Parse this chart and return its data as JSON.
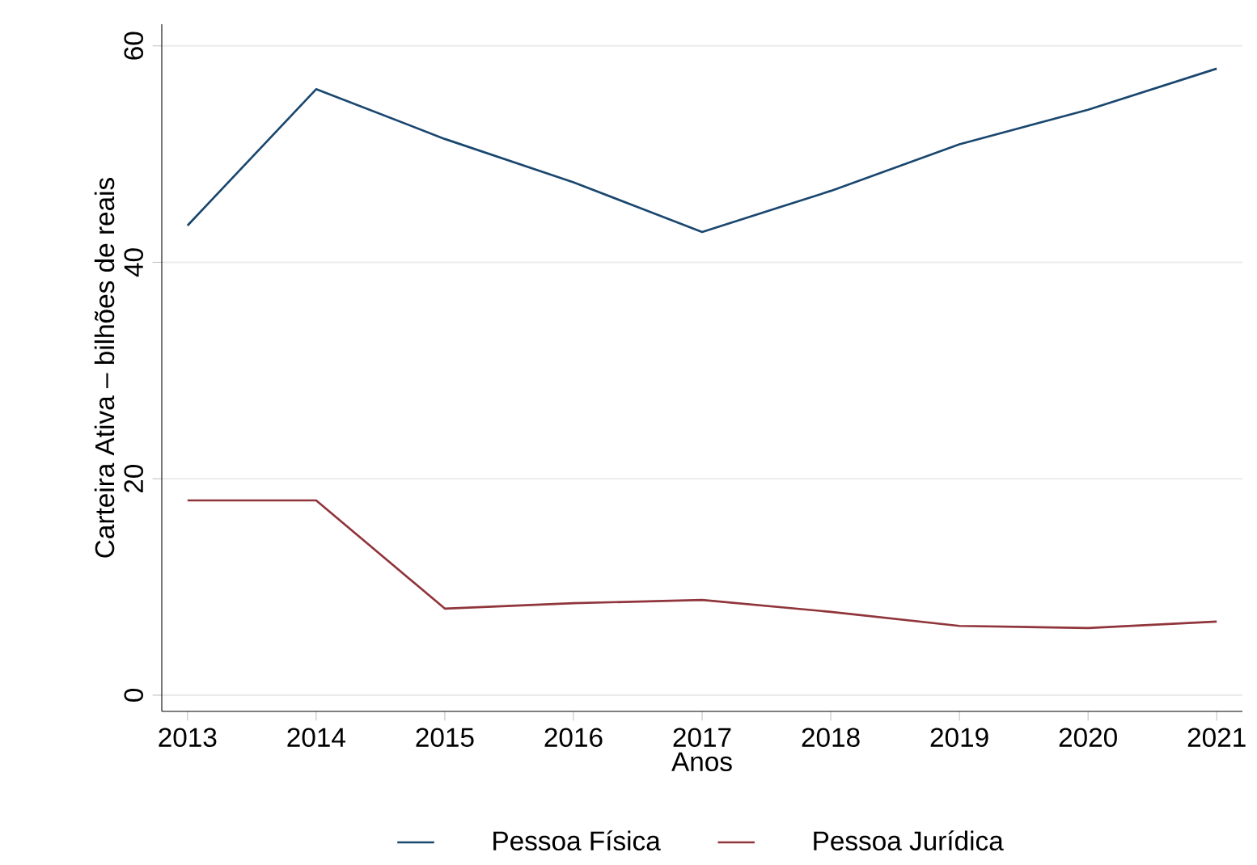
{
  "chart_data": {
    "type": "line",
    "xlabel": "Anos",
    "ylabel": "Carteira Ativa – bilhões de reais",
    "x": [
      2013,
      2014,
      2015,
      2016,
      2017,
      2018,
      2019,
      2020,
      2021
    ],
    "series": [
      {
        "name": "Pessoa Física",
        "color": "#1a476f",
        "values": [
          43.4,
          56.0,
          51.4,
          47.4,
          42.8,
          46.6,
          50.9,
          54.1,
          57.9
        ]
      },
      {
        "name": "Pessoa Jurídica",
        "color": "#90353b",
        "values": [
          18.0,
          18.0,
          8.0,
          8.5,
          8.8,
          7.7,
          6.4,
          6.2,
          6.8
        ]
      }
    ],
    "xlim": [
      2012.8,
      2021.2
    ],
    "ylim": [
      -1.5,
      62
    ],
    "xticks": [
      2013,
      2014,
      2015,
      2016,
      2017,
      2018,
      2019,
      2020,
      2021
    ],
    "yticks": [
      0,
      20,
      40,
      60
    ],
    "grid": "y",
    "legend": "bottom",
    "marker": "none",
    "line_style": "solid"
  }
}
